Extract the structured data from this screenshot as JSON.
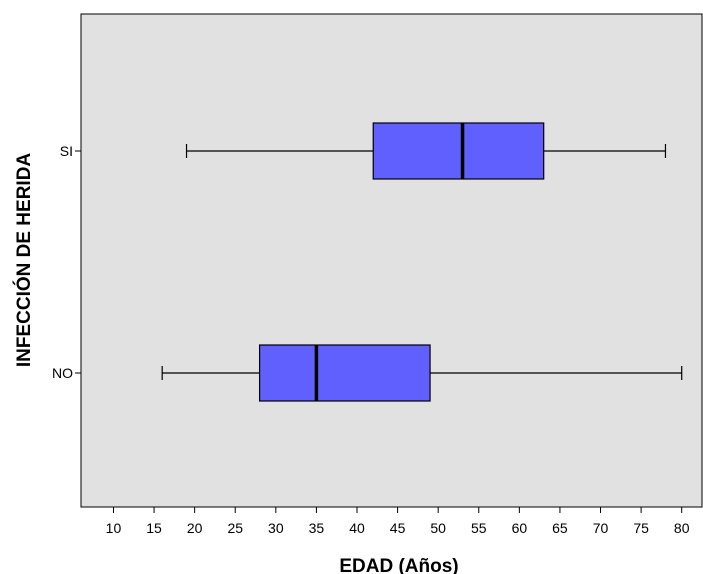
{
  "chart_data": {
    "type": "boxplot",
    "orientation": "horizontal",
    "title": "",
    "xlabel": "EDAD (Años)",
    "ylabel": "INFECCIÓN DE HERIDA",
    "xlim": [
      6,
      82.5
    ],
    "xticks": [
      10,
      15,
      20,
      25,
      30,
      35,
      40,
      45,
      50,
      55,
      60,
      65,
      70,
      75,
      80
    ],
    "grid": false,
    "legend": "none",
    "box_color": "#6060ff",
    "plot_background": "#e1e1e1",
    "categories": [
      "SI",
      "NO"
    ],
    "boxes": [
      {
        "category": "SI",
        "whisker_low": 19,
        "q1": 42,
        "median": 53,
        "q3": 63,
        "whisker_high": 78
      },
      {
        "category": "NO",
        "whisker_low": 16,
        "q1": 28,
        "median": 35,
        "q3": 49,
        "whisker_high": 80
      }
    ]
  }
}
